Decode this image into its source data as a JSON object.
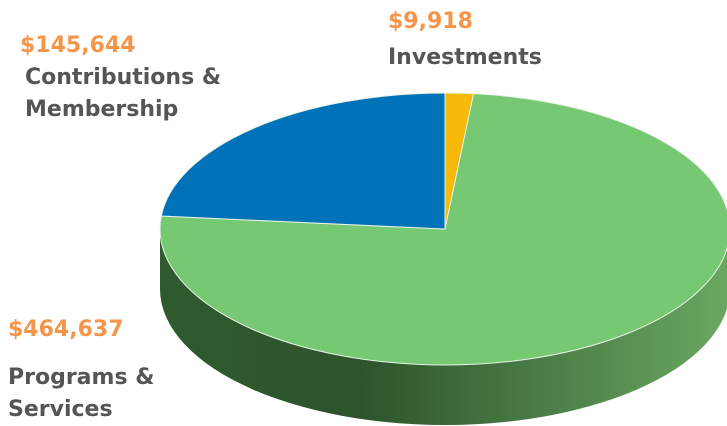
{
  "chart_data": {
    "type": "pie",
    "categories": [
      "Investments",
      "Programs & Services",
      "Contributions & Membership"
    ],
    "values": [
      9918,
      464637,
      145644
    ],
    "value_labels": [
      "$9,918",
      "$464,637",
      "$145,644"
    ],
    "colors": [
      "#f7b90a",
      "#77c873",
      "#0072b9"
    ]
  }
}
